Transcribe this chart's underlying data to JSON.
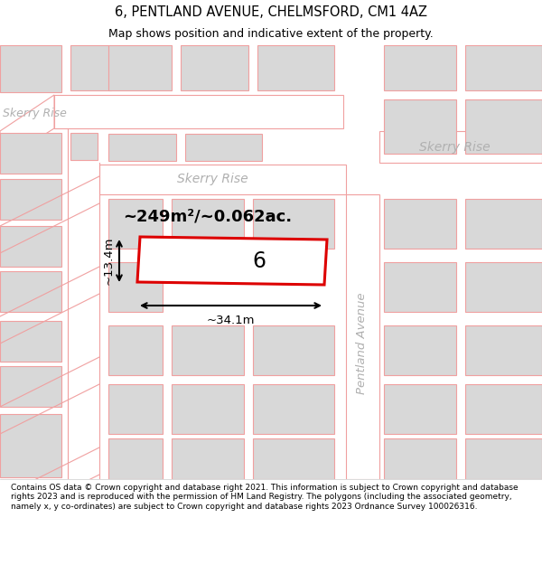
{
  "title": "6, PENTLAND AVENUE, CHELMSFORD, CM1 4AZ",
  "subtitle": "Map shows position and indicative extent of the property.",
  "footer": "Contains OS data © Crown copyright and database right 2021. This information is subject to Crown copyright and database rights 2023 and is reproduced with the permission of HM Land Registry. The polygons (including the associated geometry, namely x, y co-ordinates) are subject to Crown copyright and database rights 2023 Ordnance Survey 100026316.",
  "bg_color": "#ffffff",
  "building_fill": "#d8d8d8",
  "road_line_color": "#f0a0a0",
  "highlight_color": "#dd0000",
  "street_text_color": "#b0b0b0",
  "area_text": "~249m²/~0.062ac.",
  "width_text": "~34.1m",
  "height_text": "~13.4m",
  "number_text": "6",
  "street1": "Skerry Rise",
  "street2": "Skerry Rise",
  "street3": "Skerry Rise",
  "street4": "Pentland Avenue",
  "title_fontsize": 10.5,
  "subtitle_fontsize": 9.0,
  "footer_fontsize": 6.5
}
